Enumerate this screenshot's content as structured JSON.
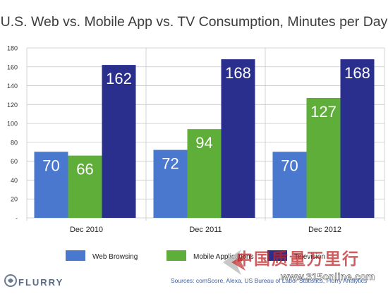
{
  "title": "U.S. Web vs. Mobile App vs. TV Consumption, Minutes per Day",
  "logo": {
    "text": "FLURRY"
  },
  "sources": "Sources: comScore, Alexa, US Bureau of Labor Statistics, Flurry Analytics",
  "watermark": {
    "text": "中国质量万里行",
    "url": "www.315online.com"
  },
  "colors": {
    "web": "#4a78cf",
    "mobile": "#5fae3a",
    "tv": "#2a2f8e",
    "grid": "#c8c8c8"
  },
  "chart_data": {
    "type": "bar",
    "categories": [
      "Dec 2010",
      "Dec 2011",
      "Dec 2012"
    ],
    "series": [
      {
        "name": "Web Browsing",
        "values": [
          70,
          72,
          70
        ]
      },
      {
        "name": "Mobile Applications",
        "values": [
          66,
          94,
          127
        ]
      },
      {
        "name": "Television",
        "values": [
          162,
          168,
          168
        ]
      }
    ],
    "yticks": [
      "-",
      "20",
      "40",
      "60",
      "80",
      "100",
      "120",
      "140",
      "160",
      "180"
    ],
    "ylim": [
      0,
      180
    ],
    "grid": true,
    "legend": "bottom"
  }
}
